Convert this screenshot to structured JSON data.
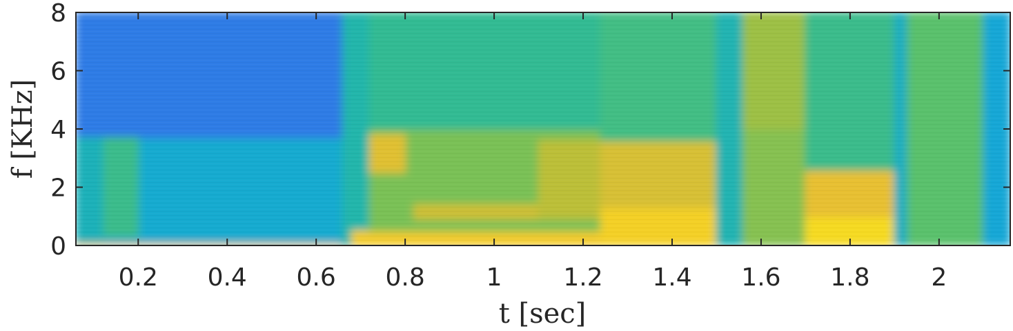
{
  "chart_data": {
    "type": "heatmap",
    "title": "",
    "xlabel": "t [sec]",
    "ylabel": "f [KHz]",
    "xlim": [
      0.06,
      2.16
    ],
    "ylim": [
      0,
      8
    ],
    "x_ticks": [
      0.2,
      0.4,
      0.6,
      0.8,
      1,
      1.2,
      1.4,
      1.6,
      1.8,
      2
    ],
    "x_tick_labels": [
      "0.2",
      "0.4",
      "0.6",
      "0.8",
      "1",
      "1.2",
      "1.4",
      "1.6",
      "1.8",
      "2"
    ],
    "y_ticks": [
      0,
      2,
      4,
      6,
      8
    ],
    "y_tick_labels": [
      "0",
      "2",
      "4",
      "6",
      "8"
    ],
    "colormap": [
      "#3a5ce8",
      "#2c82e6",
      "#15a9d5",
      "#26b9a0",
      "#5ec267",
      "#b1bf39",
      "#f0c030",
      "#f8e41c"
    ],
    "grid": false,
    "legend": "none",
    "intensity_regions": [
      {
        "t": [
          0.06,
          0.66
        ],
        "f": [
          0,
          0.1
        ],
        "level": 0.88
      },
      {
        "t": [
          0.06,
          0.66
        ],
        "f": [
          0.1,
          3.7
        ],
        "level": 0.3
      },
      {
        "t": [
          0.06,
          0.66
        ],
        "f": [
          3.7,
          8
        ],
        "level": 0.12
      },
      {
        "t": [
          0.12,
          0.2
        ],
        "f": [
          0.3,
          3.7
        ],
        "level": 0.48
      },
      {
        "t": [
          0.06,
          0.12
        ],
        "f": [
          0.1,
          3.7
        ],
        "level": 0.36
      },
      {
        "t": [
          0.66,
          0.72
        ],
        "f": [
          0,
          8
        ],
        "level": 0.4
      },
      {
        "t": [
          0.68,
          1.24
        ],
        "f": [
          0,
          0.5
        ],
        "level": 0.9
      },
      {
        "t": [
          0.72,
          1.24
        ],
        "f": [
          0.5,
          4
        ],
        "level": 0.62
      },
      {
        "t": [
          0.72,
          1.24
        ],
        "f": [
          4,
          8
        ],
        "level": 0.46
      },
      {
        "t": [
          0.72,
          0.8
        ],
        "f": [
          2.5,
          3.8
        ],
        "level": 0.82
      },
      {
        "t": [
          0.82,
          1.1
        ],
        "f": [
          0.9,
          1.4
        ],
        "level": 0.78
      },
      {
        "t": [
          1.1,
          1.24
        ],
        "f": [
          0.9,
          3.6
        ],
        "level": 0.74
      },
      {
        "t": [
          1.24,
          1.5
        ],
        "f": [
          0,
          1.3
        ],
        "level": 0.92
      },
      {
        "t": [
          1.24,
          1.5
        ],
        "f": [
          1.3,
          3.6
        ],
        "level": 0.8
      },
      {
        "t": [
          1.24,
          1.5
        ],
        "f": [
          3.6,
          8
        ],
        "level": 0.5
      },
      {
        "t": [
          1.5,
          1.56
        ],
        "f": [
          0,
          8
        ],
        "level": 0.38
      },
      {
        "t": [
          1.56,
          1.7
        ],
        "f": [
          0,
          4
        ],
        "level": 0.64
      },
      {
        "t": [
          1.56,
          1.7
        ],
        "f": [
          4,
          8
        ],
        "level": 0.68
      },
      {
        "t": [
          1.7,
          1.9
        ],
        "f": [
          0,
          1
        ],
        "level": 0.96
      },
      {
        "t": [
          1.7,
          1.9
        ],
        "f": [
          1,
          2.6
        ],
        "level": 0.84
      },
      {
        "t": [
          1.7,
          1.9
        ],
        "f": [
          2.6,
          8
        ],
        "level": 0.48
      },
      {
        "t": [
          1.9,
          1.93
        ],
        "f": [
          0,
          8
        ],
        "level": 0.34
      },
      {
        "t": [
          1.93,
          2.1
        ],
        "f": [
          0,
          8
        ],
        "level": 0.56
      },
      {
        "t": [
          2.1,
          2.16
        ],
        "f": [
          0,
          8
        ],
        "level": 0.28
      }
    ]
  }
}
